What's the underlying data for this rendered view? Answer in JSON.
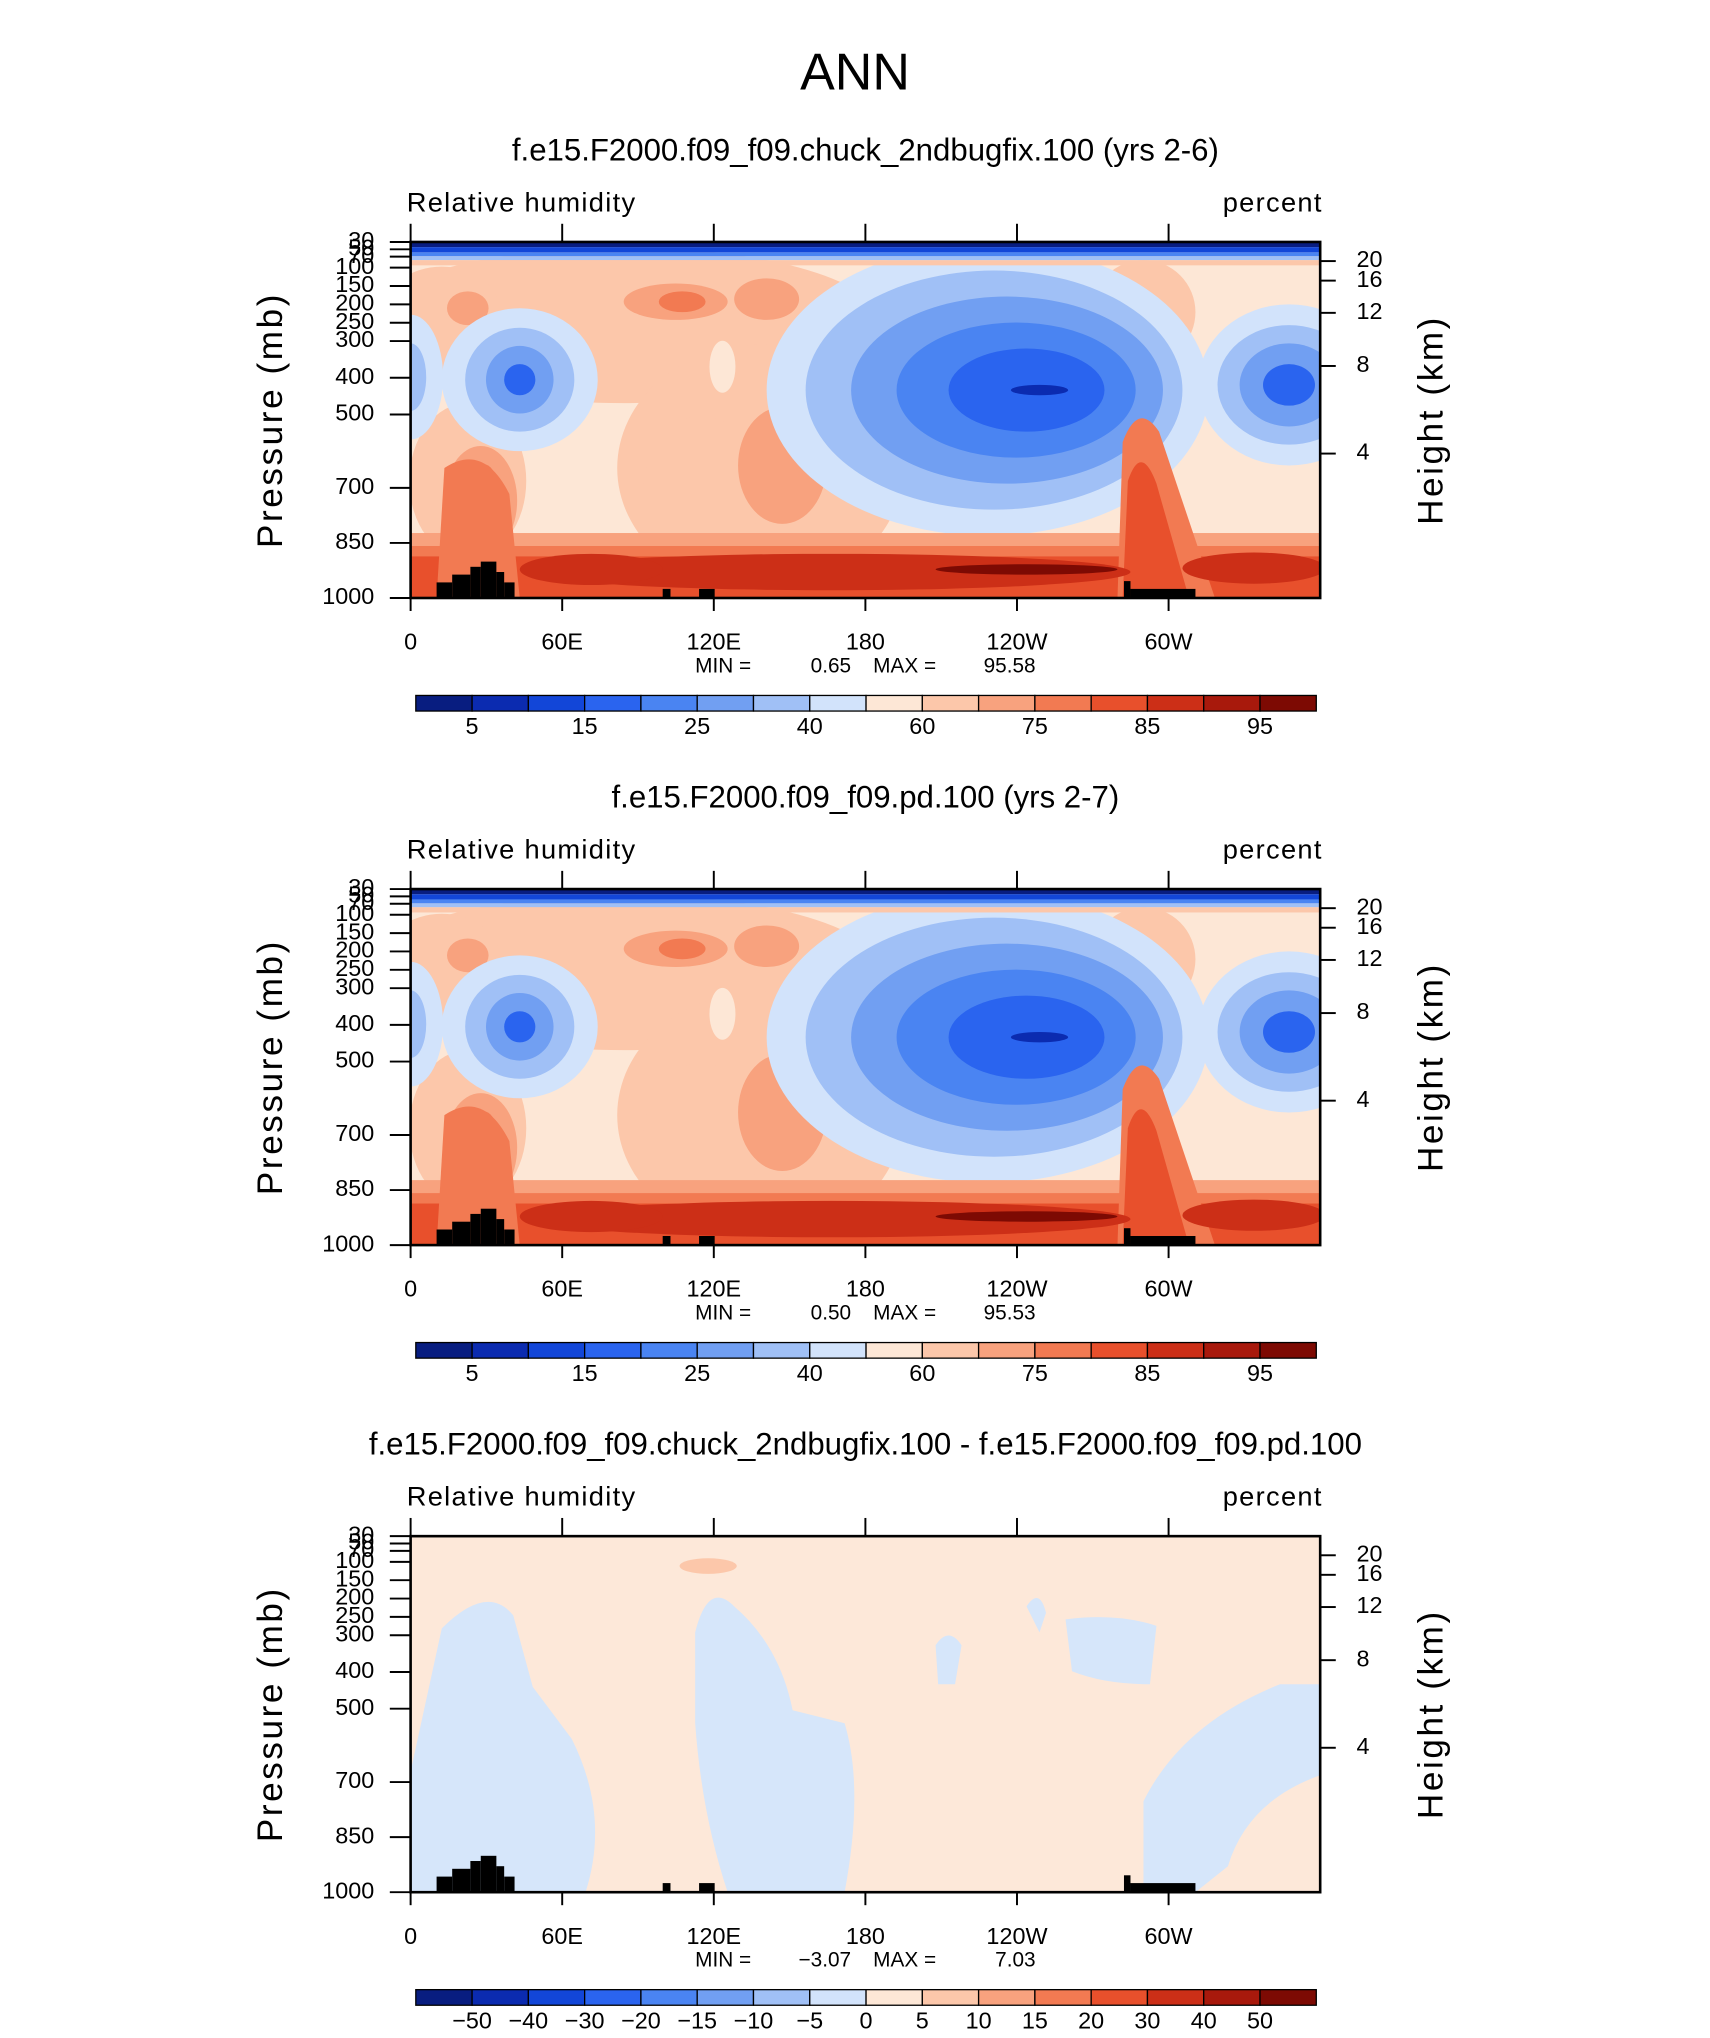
{
  "title": "ANN",
  "panels": [
    {
      "title": "f.e15.F2000.f09_f09.chuck_2ndbugfix.100 (yrs 2-6)",
      "left_label": "Relative humidity",
      "right_label": "percent",
      "y_label": "Pressure (mb)",
      "y2_label": "Height (km)",
      "ylim": [
        1000,
        30
      ],
      "yticks": [
        30,
        50,
        70,
        100,
        150,
        200,
        250,
        300,
        400,
        500,
        700,
        850,
        1000
      ],
      "y2ticks": [
        20,
        16,
        12,
        8,
        4
      ],
      "xlim": [
        0,
        360
      ],
      "xticks": [
        0,
        {
          "value": 60,
          "label": "60E"
        },
        {
          "value": 120,
          "label": "120E"
        },
        180,
        {
          "value": 240,
          "label": "120W"
        },
        {
          "value": 300,
          "label": "60W"
        }
      ],
      "min_label": "MIN =",
      "min": 0.65,
      "max_label": "MAX =",
      "max": 95.58,
      "colorbar": {
        "colors": [
          "#081d80",
          "#0b2bb0",
          "#1246d8",
          "#2a64ef",
          "#4a84f2",
          "#719ff2",
          "#a0c0f6",
          "#d2e3fb",
          "#fde7d6",
          "#fcc7aa",
          "#f8a27e",
          "#f27a52",
          "#e8502c",
          "#cc2f17",
          "#a8190c",
          "#7d0a03"
        ],
        "labels": [
          5,
          15,
          25,
          40,
          60,
          75,
          85,
          95
        ]
      }
    },
    {
      "title": "f.e15.F2000.f09_f09.pd.100 (yrs 2-7)",
      "left_label": "Relative humidity",
      "right_label": "percent",
      "y_label": "Pressure (mb)",
      "y2_label": "Height (km)",
      "ylim": [
        1000,
        30
      ],
      "yticks": [
        30,
        50,
        70,
        100,
        150,
        200,
        250,
        300,
        400,
        500,
        700,
        850,
        1000
      ],
      "y2ticks": [
        20,
        16,
        12,
        8,
        4
      ],
      "xlim": [
        0,
        360
      ],
      "xticks": [
        0,
        {
          "value": 60,
          "label": "60E"
        },
        {
          "value": 120,
          "label": "120E"
        },
        180,
        {
          "value": 240,
          "label": "120W"
        },
        {
          "value": 300,
          "label": "60W"
        }
      ],
      "min_label": "MIN =",
      "min": {
        "value": 0.5,
        "label": "0.50"
      },
      "max_label": "MAX =",
      "max": 95.53,
      "colorbar": {
        "colors": [
          "#081d80",
          "#0b2bb0",
          "#1246d8",
          "#2a64ef",
          "#4a84f2",
          "#719ff2",
          "#a0c0f6",
          "#d2e3fb",
          "#fde7d6",
          "#fcc7aa",
          "#f8a27e",
          "#f27a52",
          "#e8502c",
          "#cc2f17",
          "#a8190c",
          "#7d0a03"
        ],
        "labels": [
          5,
          15,
          25,
          40,
          60,
          75,
          85,
          95
        ]
      }
    },
    {
      "title": "f.e15.F2000.f09_f09.chuck_2ndbugfix.100 - f.e15.F2000.f09_f09.pd.100",
      "left_label": "Relative humidity",
      "right_label": "percent",
      "y_label": "Pressure (mb)",
      "y2_label": "Height (km)",
      "ylim": [
        1000,
        30
      ],
      "yticks": [
        30,
        50,
        70,
        100,
        150,
        200,
        250,
        300,
        400,
        500,
        700,
        850,
        1000
      ],
      "y2ticks": [
        20,
        16,
        12,
        8,
        4
      ],
      "xlim": [
        0,
        360
      ],
      "xticks": [
        0,
        {
          "value": 60,
          "label": "60E"
        },
        {
          "value": 120,
          "label": "120E"
        },
        180,
        {
          "value": 240,
          "label": "120W"
        },
        {
          "value": 300,
          "label": "60W"
        }
      ],
      "min_label": "MIN =",
      "min": {
        "value": -3.07,
        "label": "−3.07"
      },
      "max_label": "MAX =",
      "max": 7.03,
      "colorbar": {
        "colors": [
          "#081d80",
          "#0b2bb0",
          "#1246d8",
          "#2a64ef",
          "#4a84f2",
          "#719ff2",
          "#a0c0f6",
          "#d2e3fb",
          "#fde7d6",
          "#fcc7aa",
          "#f8a27e",
          "#f27a52",
          "#e8502c",
          "#cc2f17",
          "#a8190c",
          "#7d0a03"
        ],
        "labels": [
          {
            "value": -50,
            "label": "−50"
          },
          {
            "value": -40,
            "label": "−40"
          },
          {
            "value": -30,
            "label": "−30"
          },
          {
            "value": -20,
            "label": "−20"
          },
          {
            "value": -15,
            "label": "−15"
          },
          {
            "value": -10,
            "label": "−10"
          },
          {
            "value": -5,
            "label": "−5"
          },
          0,
          5,
          10,
          15,
          20,
          30,
          40,
          50
        ]
      }
    }
  ]
}
